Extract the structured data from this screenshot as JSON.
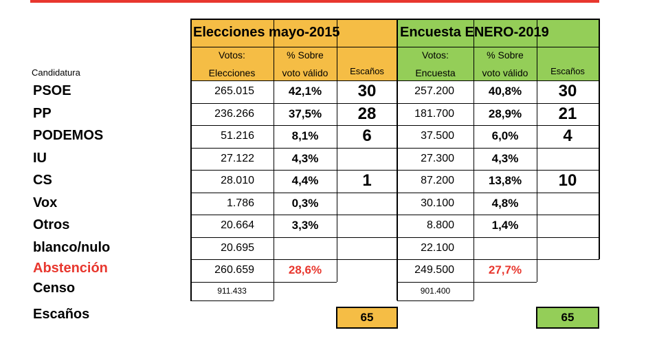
{
  "colors": {
    "orange": "#f5bd45",
    "green": "#94ce58",
    "red": "#e8372e"
  },
  "candidatura_label": "Candidatura",
  "groups": [
    {
      "title": "Elecciones mayo-2015",
      "sub": [
        "Votos:\nElecciones",
        "% Sobre\nvoto válido",
        "Escaños"
      ]
    },
    {
      "title": "Encuesta ENERO-2019",
      "sub": [
        "Votos:\nEncuesta",
        "% Sobre\nvoto válido",
        "Escaños"
      ]
    }
  ],
  "rows": [
    {
      "label": "PSOE",
      "v15": "265.015",
      "p15": "42,1%",
      "s15": "30",
      "v19": "257.200",
      "p19": "40,8%",
      "s19": "30"
    },
    {
      "label": "PP",
      "v15": "236.266",
      "p15": "37,5%",
      "s15": "28",
      "v19": "181.700",
      "p19": "28,9%",
      "s19": "21"
    },
    {
      "label": "PODEMOS",
      "v15": "51.216",
      "p15": "8,1%",
      "s15": "6",
      "v19": "37.500",
      "p19": "6,0%",
      "s19": "4"
    },
    {
      "label": "IU",
      "v15": "27.122",
      "p15": "4,3%",
      "s15": "",
      "v19": "27.300",
      "p19": "4,3%",
      "s19": ""
    },
    {
      "label": "CS",
      "v15": "28.010",
      "p15": "4,4%",
      "s15": "1",
      "v19": "87.200",
      "p19": "13,8%",
      "s19": "10"
    },
    {
      "label": "Vox",
      "v15": "1.786",
      "p15": "0,3%",
      "s15": "",
      "v19": "30.100",
      "p19": "4,8%",
      "s19": ""
    },
    {
      "label": "Otros",
      "v15": "20.664",
      "p15": "3,3%",
      "s15": "",
      "v19": "8.800",
      "p19": "1,4%",
      "s19": ""
    },
    {
      "label": "blanco/nulo",
      "v15": "20.695",
      "p15": "",
      "s15": "",
      "v19": "22.100",
      "p19": "",
      "s19": ""
    }
  ],
  "abstencion": {
    "label": "Abstención",
    "v15": "260.659",
    "p15": "28,6%",
    "v19": "249.500",
    "p19": "27,7%"
  },
  "censo": {
    "label": "Censo",
    "v15": "911.433",
    "v19": "901.400"
  },
  "escanos": {
    "label": "Escaños",
    "t15": "65",
    "t19": "65"
  }
}
